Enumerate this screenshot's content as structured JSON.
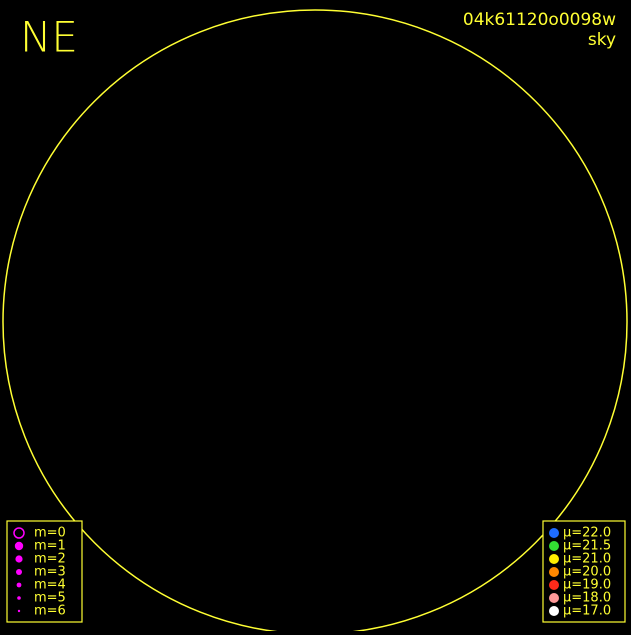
{
  "corner_label": "NE",
  "header": {
    "title": "04k61120o0098w",
    "subtitle": "sky"
  },
  "magnitude_legend": {
    "color": "#ff00ff",
    "items": [
      "m=0",
      "m=1",
      "m=2",
      "m=3",
      "m=4",
      "m=5",
      "m=6"
    ]
  },
  "surface_brightness_legend": {
    "items": [
      {
        "label": "μ=22.0",
        "color": "#1e6cff"
      },
      {
        "label": "μ=21.5",
        "color": "#33dd33"
      },
      {
        "label": "μ=21.0",
        "color": "#ffee00"
      },
      {
        "label": "μ=20.0",
        "color": "#ff8800"
      },
      {
        "label": "μ=19.0",
        "color": "#ff2a1a"
      },
      {
        "label": "μ=18.0",
        "color": "#ff9999"
      },
      {
        "label": "μ=17.0",
        "color": "#ffffff"
      }
    ]
  }
}
